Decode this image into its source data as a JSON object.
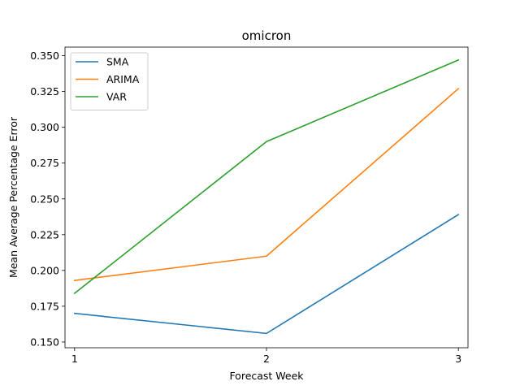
{
  "chart_data": {
    "type": "line",
    "title": "omicron",
    "xlabel": "Forecast Week",
    "ylabel": "Mean Average Percentage Error",
    "x": [
      1,
      2,
      3
    ],
    "xticks": [
      "1",
      "2",
      "3"
    ],
    "xlim": [
      0.95,
      3.05
    ],
    "ylim": [
      0.146,
      0.356
    ],
    "yticks": [
      0.15,
      0.175,
      0.2,
      0.225,
      0.25,
      0.275,
      0.3,
      0.325,
      0.35
    ],
    "ytick_labels": [
      "0.150",
      "0.175",
      "0.200",
      "0.225",
      "0.250",
      "0.275",
      "0.300",
      "0.325",
      "0.350"
    ],
    "grid": false,
    "legend_position": "top-left",
    "series": [
      {
        "name": "SMA",
        "color": "#1f77b4",
        "values": [
          0.17,
          0.156,
          0.239
        ]
      },
      {
        "name": "ARIMA",
        "color": "#ff7f0e",
        "values": [
          0.193,
          0.21,
          0.327
        ]
      },
      {
        "name": "VAR",
        "color": "#2ca02c",
        "values": [
          0.184,
          0.29,
          0.347
        ]
      }
    ]
  }
}
